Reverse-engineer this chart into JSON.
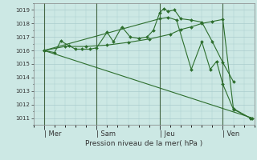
{
  "background_color": "#cce8e4",
  "grid_color": "#aacccc",
  "line_color": "#2d6e2d",
  "marker_color": "#2d6e2d",
  "xlabel": "Pression niveau de la mer( hPa )",
  "ylim": [
    1010.5,
    1019.5
  ],
  "yticks": [
    1011,
    1012,
    1013,
    1014,
    1015,
    1016,
    1017,
    1018,
    1019
  ],
  "xlim": [
    0,
    10.5
  ],
  "day_labels": [
    "| Mer",
    "| Sam",
    "| Jeu",
    "| Ven"
  ],
  "day_positions": [
    0.5,
    3.0,
    6.0,
    9.0
  ],
  "vlines": [
    0.5,
    3.0,
    6.0,
    9.0
  ],
  "series": [
    {
      "x": [
        0.5,
        1.0,
        1.3,
        1.7,
        2.0,
        2.3,
        2.7,
        3.0,
        3.5,
        3.8,
        4.2,
        4.6,
        5.0,
        5.4,
        5.7,
        6.0,
        6.2,
        6.4,
        6.7,
        7.0,
        7.5,
        8.0,
        8.5,
        9.0,
        9.5
      ],
      "y": [
        1016.0,
        1015.85,
        1016.7,
        1016.35,
        1016.1,
        1016.1,
        1016.1,
        1016.2,
        1017.35,
        1016.65,
        1017.75,
        1017.0,
        1016.9,
        1017.0,
        1017.5,
        1018.8,
        1019.1,
        1018.9,
        1019.0,
        1018.35,
        1018.25,
        1018.1,
        1016.65,
        1015.1,
        1013.7
      ]
    },
    {
      "x": [
        0.5,
        10.4
      ],
      "y": [
        1016.0,
        1011.0
      ]
    },
    {
      "x": [
        0.5,
        1.5,
        2.5,
        3.5,
        4.5,
        5.5,
        6.5,
        7.0,
        7.5,
        8.0,
        8.5,
        9.0,
        9.5,
        10.3
      ],
      "y": [
        1016.0,
        1016.3,
        1016.3,
        1016.4,
        1016.6,
        1016.85,
        1017.2,
        1017.55,
        1017.75,
        1018.0,
        1018.15,
        1018.3,
        1011.7,
        1011.0
      ]
    },
    {
      "x": [
        0.5,
        6.0,
        6.4,
        6.8,
        7.5,
        8.0,
        8.4,
        8.7,
        9.0,
        9.5,
        10.3
      ],
      "y": [
        1016.0,
        1018.35,
        1018.45,
        1018.25,
        1014.6,
        1016.65,
        1014.6,
        1015.2,
        1013.5,
        1011.65,
        1011.0
      ]
    }
  ]
}
